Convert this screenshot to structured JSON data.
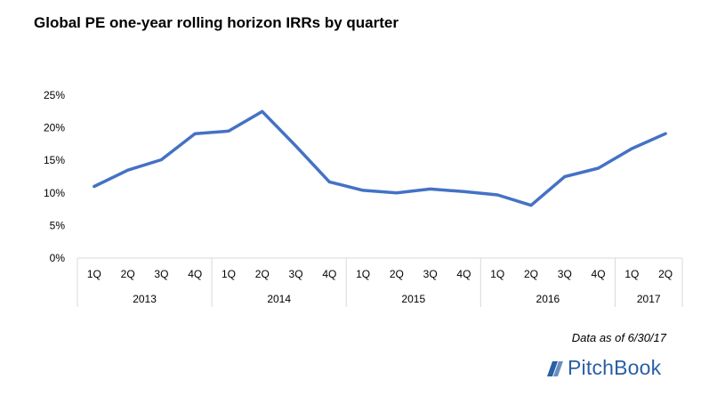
{
  "chart_data": {
    "type": "line",
    "title": "Global PE one-year rolling horizon IRRs by quarter",
    "x": [
      "1Q",
      "2Q",
      "3Q",
      "4Q",
      "1Q",
      "2Q",
      "3Q",
      "4Q",
      "1Q",
      "2Q",
      "3Q",
      "4Q",
      "1Q",
      "2Q",
      "3Q",
      "4Q",
      "1Q",
      "2Q"
    ],
    "year_groups": [
      {
        "label": "2013",
        "count": 4
      },
      {
        "label": "2014",
        "count": 4
      },
      {
        "label": "2015",
        "count": 4
      },
      {
        "label": "2016",
        "count": 4
      },
      {
        "label": "2017",
        "count": 2
      }
    ],
    "series": [
      {
        "values": [
          0.11,
          0.135,
          0.151,
          0.191,
          0.195,
          0.225,
          0.172,
          0.117,
          0.104,
          0.1,
          0.106,
          0.102,
          0.097,
          0.081,
          0.125,
          0.138,
          0.168,
          0.191
        ]
      }
    ],
    "ylim": [
      0,
      0.25
    ],
    "yticks": [
      0,
      0.05,
      0.1,
      0.15,
      0.2,
      0.25
    ],
    "ytick_labels": [
      "0%",
      "5%",
      "10%",
      "15%",
      "20%",
      "25%"
    ],
    "line_color": "#4472c4",
    "grid": false
  },
  "footer": {
    "note": "Data as of 6/30/17",
    "brand": "PitchBook",
    "brand_icon": "pitchbook-logo-icon"
  }
}
